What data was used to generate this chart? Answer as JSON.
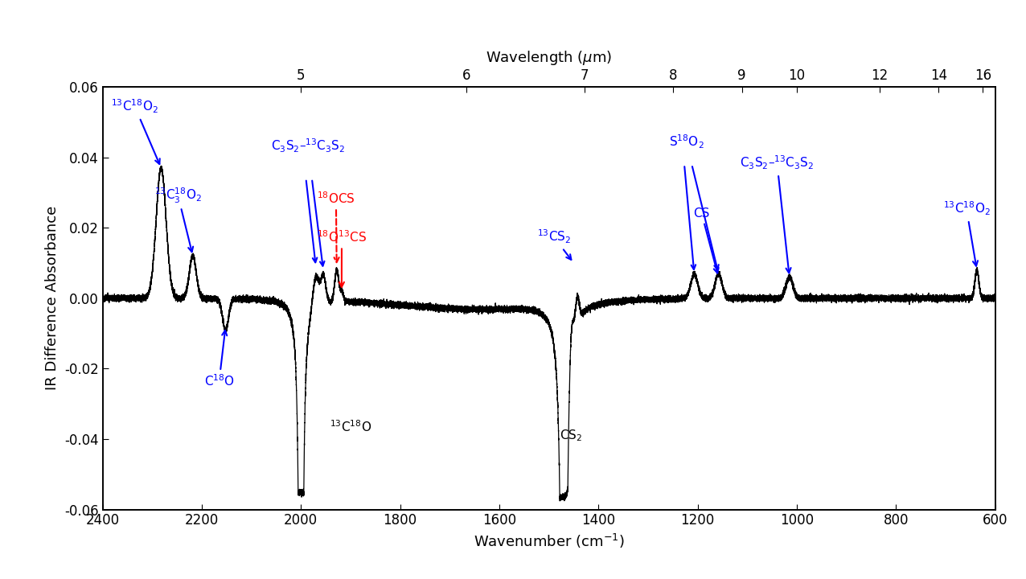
{
  "xlim": [
    2400,
    600
  ],
  "ylim": [
    -0.06,
    0.06
  ],
  "xlabel": "Wavenumber (cm$^{-1}$)",
  "ylabel": "IR Difference Absorbance",
  "top_xlabel": "Wavelength ($\\mu$m)",
  "top_ticks_wn": [
    2000.0,
    1666.67,
    1428.57,
    1250.0,
    1111.11,
    1000.0,
    833.33,
    714.29,
    625.0
  ],
  "top_tick_labels": [
    "5",
    "6",
    "7",
    "8",
    "9",
    "10",
    "12",
    "14",
    "16"
  ],
  "background_color": "#ffffff"
}
